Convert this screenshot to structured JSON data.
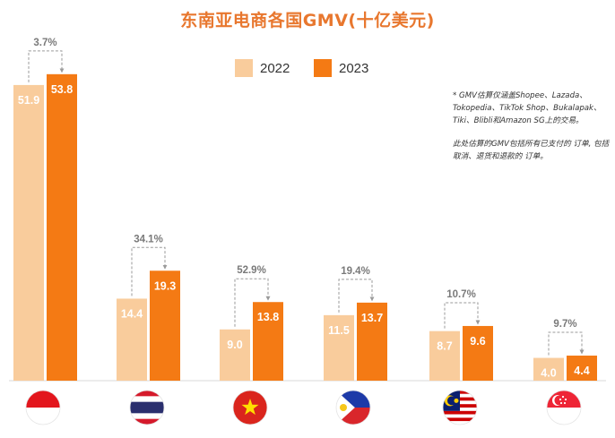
{
  "chart_data": {
    "type": "bar",
    "title": "东南亚电商各国GMV(十亿美元)",
    "categories": [
      "Indonesia",
      "Thailand",
      "Vietnam",
      "Philippines",
      "Malaysia",
      "Singapore"
    ],
    "series": [
      {
        "name": "2022",
        "values": [
          51.9,
          14.4,
          9.0,
          11.5,
          8.7,
          4.0
        ],
        "labels": [
          "51.9",
          "14.4",
          "9.0",
          "11.5",
          "8.7",
          "4.0"
        ],
        "color": "#f9cc9c"
      },
      {
        "name": "2023",
        "values": [
          53.8,
          19.3,
          13.8,
          13.7,
          9.6,
          4.4
        ],
        "labels": [
          "53.8",
          "19.3",
          "13.8",
          "13.7",
          "9.6",
          "4.4"
        ],
        "color": "#f47a14"
      }
    ],
    "growth": [
      "3.7%",
      "34.1%",
      "52.9%",
      "19.4%",
      "10.7%",
      "9.7%"
    ],
    "ylim": [
      0,
      58
    ],
    "xlabel": "",
    "ylabel": "",
    "grid": false,
    "legend": "top-center"
  },
  "notes": [
    "* GMV估算仅涵盖Shopee、Lazada、Tokopedia、TikTok Shop、Bukalapak、Tiki、Blibli和Amazon SG上的交易。",
    "此处估算的GMV包括所有已支付的 订单, 包括取消、退货和退款的 订单。"
  ],
  "flags": [
    "indonesia-flag-icon",
    "thailand-flag-icon",
    "vietnam-flag-icon",
    "philippines-flag-icon",
    "malaysia-flag-icon",
    "singapore-flag-icon"
  ]
}
